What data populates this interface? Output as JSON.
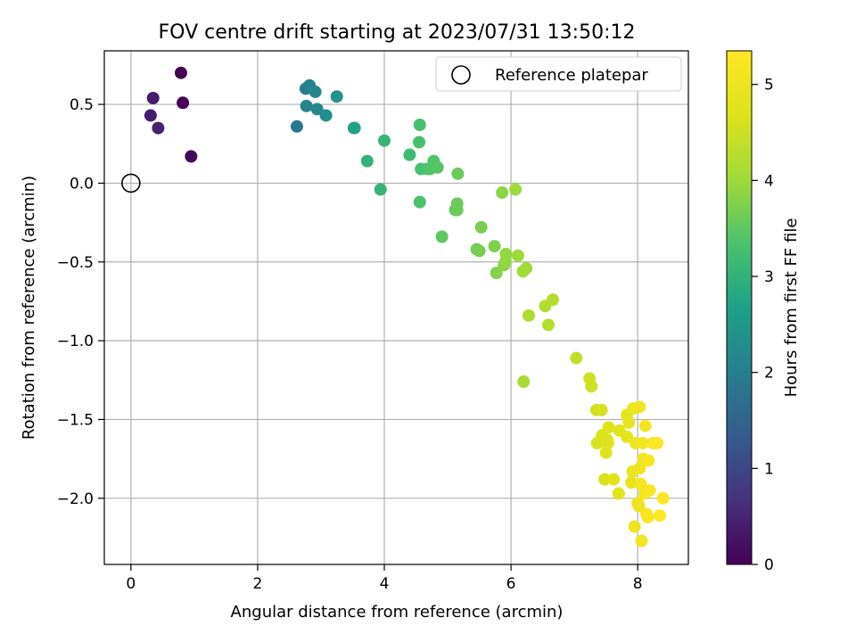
{
  "chart_data": {
    "type": "scatter",
    "title": "FOV centre drift starting at 2023/07/31 13:50:12",
    "xlabel": "Angular distance from reference (arcmin)",
    "ylabel": "Rotation from reference (arcmin)",
    "xlim": [
      -0.42,
      8.8
    ],
    "ylim": [
      -2.42,
      0.84
    ],
    "xticks": [
      0,
      2,
      4,
      6,
      8
    ],
    "xtick_labels": [
      "0",
      "2",
      "4",
      "6",
      "8"
    ],
    "yticks": [
      0.5,
      0.0,
      -0.5,
      -1.0,
      -1.5,
      -2.0
    ],
    "ytick_labels": [
      "0.5",
      "0.0",
      "−0.5",
      "−1.0",
      "−1.5",
      "−2.0"
    ],
    "grid": true,
    "legend": {
      "position": "top-right",
      "entries": [
        {
          "label": "Reference platepar",
          "marker": "hollow-circle"
        }
      ]
    },
    "reference_point": {
      "x": 0,
      "y": 0
    },
    "colorbar": {
      "label": "Hours from first FF file",
      "range": [
        0,
        5.35
      ],
      "ticks": [
        0,
        1,
        2,
        3,
        4,
        5
      ],
      "tick_labels": [
        "0",
        "1",
        "2",
        "3",
        "4",
        "5"
      ],
      "colormap": "viridis"
    },
    "series": [
      {
        "points": [
          [
            0.79,
            0.7,
            0.0
          ],
          [
            0.82,
            0.51,
            0.05
          ],
          [
            0.95,
            0.17,
            0.1
          ],
          [
            0.35,
            0.54,
            0.35
          ],
          [
            0.31,
            0.43,
            0.4
          ],
          [
            0.43,
            0.35,
            0.45
          ],
          [
            2.62,
            0.36,
            1.9
          ],
          [
            2.76,
            0.6,
            2.0
          ],
          [
            2.82,
            0.62,
            2.05
          ],
          [
            2.77,
            0.49,
            2.1
          ],
          [
            2.91,
            0.58,
            2.15
          ],
          [
            2.94,
            0.47,
            2.2
          ],
          [
            3.08,
            0.43,
            2.3
          ],
          [
            3.25,
            0.55,
            2.4
          ],
          [
            3.52,
            0.35,
            2.75
          ],
          [
            3.53,
            0.35,
            2.7
          ],
          [
            3.73,
            0.14,
            3.0
          ],
          [
            3.94,
            -0.04,
            3.05
          ],
          [
            4.0,
            0.27,
            3.1
          ],
          [
            4.4,
            0.18,
            3.2
          ],
          [
            4.56,
            0.37,
            3.3
          ],
          [
            4.55,
            0.26,
            3.3
          ],
          [
            4.58,
            0.09,
            3.3
          ],
          [
            4.56,
            -0.12,
            3.35
          ],
          [
            4.68,
            0.09,
            3.35
          ],
          [
            4.72,
            0.09,
            3.4
          ],
          [
            4.78,
            0.14,
            3.4
          ],
          [
            4.84,
            0.1,
            3.45
          ],
          [
            4.91,
            -0.34,
            3.5
          ],
          [
            5.12,
            -0.17,
            3.55
          ],
          [
            5.15,
            -0.13,
            3.6
          ],
          [
            5.15,
            -0.17,
            3.6
          ],
          [
            5.16,
            0.06,
            3.6
          ],
          [
            5.46,
            -0.42,
            3.65
          ],
          [
            5.5,
            -0.43,
            3.7
          ],
          [
            5.53,
            -0.28,
            3.7
          ],
          [
            5.74,
            -0.4,
            3.75
          ],
          [
            5.77,
            -0.57,
            3.8
          ],
          [
            5.86,
            -0.06,
            3.85
          ],
          [
            5.89,
            -0.52,
            3.85
          ],
          [
            5.92,
            -0.45,
            3.9
          ],
          [
            5.91,
            -0.5,
            3.9
          ],
          [
            6.07,
            -0.04,
            4.0
          ],
          [
            6.11,
            -0.46,
            4.0
          ],
          [
            6.19,
            -0.56,
            4.05
          ],
          [
            6.24,
            -0.54,
            4.05
          ],
          [
            6.2,
            -1.26,
            4.1
          ],
          [
            6.28,
            -0.84,
            4.15
          ],
          [
            6.54,
            -0.78,
            4.2
          ],
          [
            6.59,
            -0.9,
            4.25
          ],
          [
            6.66,
            -0.74,
            4.25
          ],
          [
            7.03,
            -1.11,
            4.35
          ],
          [
            7.24,
            -1.24,
            4.5
          ],
          [
            7.27,
            -1.29,
            4.5
          ],
          [
            7.35,
            -1.44,
            4.55
          ],
          [
            7.36,
            -1.65,
            4.6
          ],
          [
            7.4,
            -1.64,
            4.6
          ],
          [
            7.43,
            -1.44,
            4.6
          ],
          [
            7.44,
            -1.6,
            4.65
          ],
          [
            7.48,
            -1.88,
            4.65
          ],
          [
            7.5,
            -1.71,
            4.7
          ],
          [
            7.52,
            -1.63,
            4.7
          ],
          [
            7.53,
            -1.65,
            4.7
          ],
          [
            7.54,
            -1.55,
            4.75
          ],
          [
            7.62,
            -1.88,
            4.75
          ],
          [
            7.7,
            -1.97,
            4.8
          ],
          [
            7.71,
            -1.57,
            4.8
          ],
          [
            7.83,
            -1.47,
            4.85
          ],
          [
            7.83,
            -1.61,
            4.85
          ],
          [
            7.86,
            -1.52,
            4.9
          ],
          [
            7.9,
            -1.9,
            4.9
          ],
          [
            7.92,
            -1.83,
            4.95
          ],
          [
            7.93,
            -1.43,
            4.95
          ],
          [
            7.95,
            -2.18,
            5.0
          ],
          [
            7.97,
            -1.65,
            5.0
          ],
          [
            8.0,
            -2.03,
            5.0
          ],
          [
            8.02,
            -2.05,
            5.05
          ],
          [
            8.03,
            -1.81,
            5.05
          ],
          [
            8.03,
            -1.42,
            5.05
          ],
          [
            8.05,
            -1.91,
            5.1
          ],
          [
            8.06,
            -2.27,
            5.1
          ],
          [
            8.08,
            -1.65,
            5.1
          ],
          [
            8.09,
            -1.75,
            5.15
          ],
          [
            8.11,
            -1.97,
            5.15
          ],
          [
            8.12,
            -1.54,
            5.15
          ],
          [
            8.14,
            -2.1,
            5.2
          ],
          [
            8.16,
            -2.12,
            5.2
          ],
          [
            8.17,
            -1.76,
            5.2
          ],
          [
            8.19,
            -1.95,
            5.25
          ],
          [
            8.24,
            -1.65,
            5.25
          ],
          [
            8.31,
            -1.65,
            5.3
          ],
          [
            8.35,
            -2.11,
            5.3
          ],
          [
            8.4,
            -2.0,
            5.35
          ]
        ]
      }
    ]
  }
}
